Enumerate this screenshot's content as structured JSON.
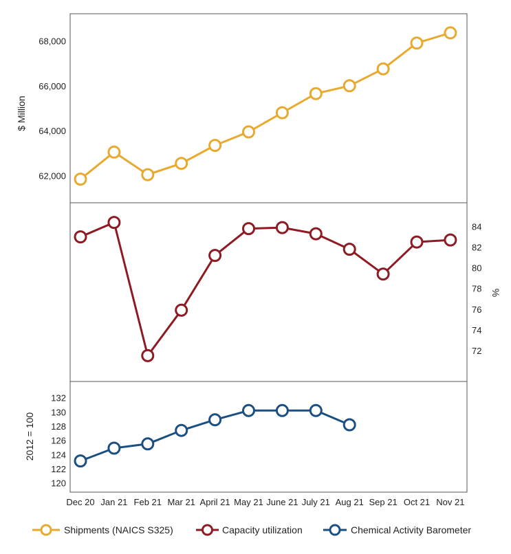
{
  "colors": {
    "shipments": "#E8AA2E",
    "capacity": "#8E1B24",
    "barometer": "#1B4F82",
    "frame": "#555555"
  },
  "chart_data": {
    "type": "line",
    "categories": [
      "Dec 20",
      "Jan 21",
      "Feb 21",
      "Mar 21",
      "April 21",
      "May 21",
      "June 21",
      "July 21",
      "Aug 21",
      "Sep 21",
      "Oct 21",
      "Nov 21"
    ],
    "panels": [
      {
        "name": "Shipments (NAICS S325)",
        "ylabel": "$ Million",
        "axis_side": "left",
        "yticks": [
          62000,
          64000,
          66000,
          68000
        ],
        "ytick_labels": [
          "62,000",
          "64,000",
          "66,000",
          "68,000"
        ],
        "ylim": [
          60800,
          69200
        ],
        "values": [
          61850,
          63050,
          62050,
          62550,
          63350,
          63950,
          64800,
          65650,
          66000,
          66750,
          67900,
          68350
        ]
      },
      {
        "name": "Capacity utilization",
        "ylabel": "%",
        "axis_side": "right",
        "yticks": [
          72,
          74,
          76,
          78,
          80,
          82,
          84
        ],
        "ytick_labels": [
          "72",
          "74",
          "76",
          "78",
          "80",
          "82",
          "84"
        ],
        "ylim": [
          69.0,
          86.3
        ],
        "values": [
          83.0,
          84.4,
          71.5,
          75.9,
          81.2,
          83.8,
          83.9,
          83.3,
          81.8,
          79.4,
          82.5,
          82.7
        ]
      },
      {
        "name": "Chemical Activity Barometer",
        "ylabel": "2012 = 100",
        "axis_side": "left",
        "yticks": [
          120,
          122,
          124,
          126,
          128,
          130,
          132
        ],
        "ytick_labels": [
          "120",
          "122",
          "124",
          "126",
          "128",
          "130",
          "132"
        ],
        "ylim": [
          118.7,
          134.3
        ],
        "values": [
          123.1,
          124.9,
          125.5,
          127.4,
          128.9,
          130.2,
          130.2,
          130.2,
          128.2,
          null,
          null,
          null
        ]
      }
    ],
    "legend": [
      "Shipments (NAICS S325)",
      "Capacity utilization",
      "Chemical Activity Barometer"
    ],
    "legend_position": "bottom"
  }
}
